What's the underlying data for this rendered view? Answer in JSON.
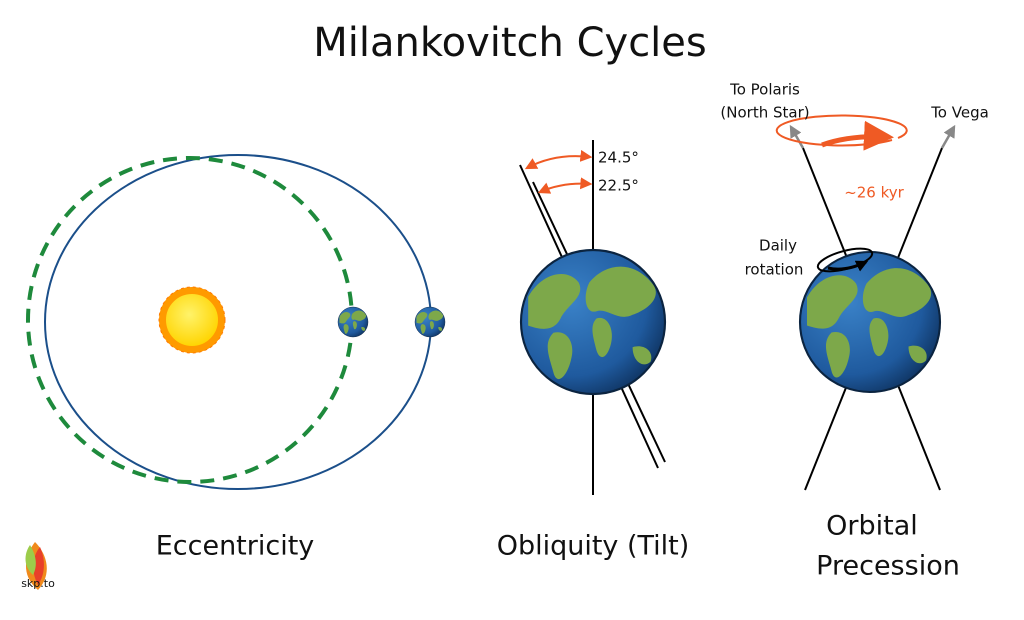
{
  "title": "Milankovitch Cycles",
  "panels": [
    {
      "label": "Eccentricity"
    },
    {
      "label": "Obliquity (Tilt)",
      "angles": [
        "24.5°",
        "22.5°"
      ]
    },
    {
      "label_lines": [
        "Orbital",
        "Precession"
      ],
      "pointers": {
        "polaris": [
          "To Polaris",
          "(North Star)"
        ],
        "vega": "To Vega"
      },
      "period": "~26 kyr",
      "rotation": [
        "Daily",
        "rotation"
      ]
    }
  ],
  "logo": "skp.to"
}
